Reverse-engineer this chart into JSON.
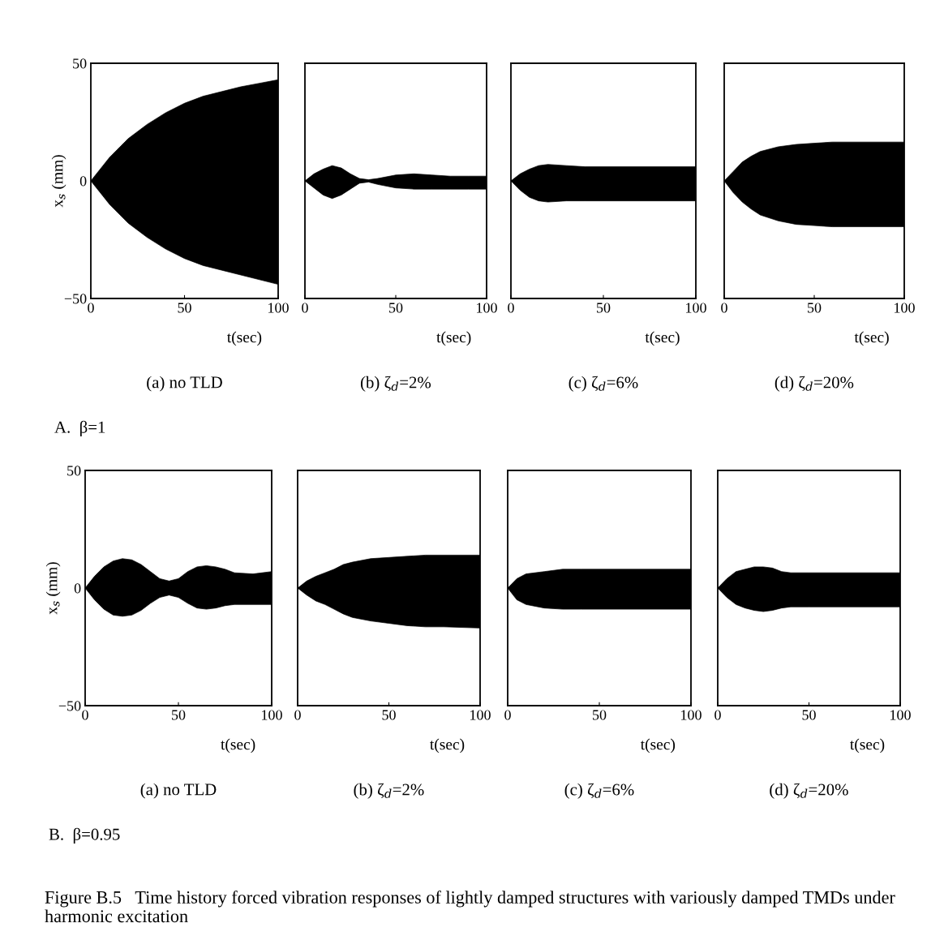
{
  "chart_data": [
    {
      "type": "area",
      "title": "(a) no TLD",
      "xlabel": "t(sec)",
      "ylabel": "x$_{s}$ (mm)",
      "xlim": [
        0,
        100
      ],
      "xticks": [
        0,
        50,
        100
      ],
      "ylim": [
        -50,
        50
      ],
      "yticks": [
        {
          "value": -50,
          "label": "−50"
        },
        0,
        50
      ],
      "annotations": [
        "A.  β=1"
      ],
      "x": [
        0,
        10,
        20,
        30,
        40,
        50,
        60,
        70,
        80,
        90,
        100
      ],
      "series": [
        {
          "color": "#000000",
          "values": [
            0,
            10,
            18,
            24,
            29,
            33,
            36,
            38,
            40,
            41.5,
            43
          ]
        },
        {
          "color": "#000000",
          "values": [
            0,
            -10,
            -18,
            -24,
            -29,
            -33,
            -36,
            -38,
            -40,
            -42,
            -44
          ]
        }
      ]
    },
    {
      "type": "area",
      "title": "(b) ζ$_{d}$=2%",
      "xlabel": "t(sec)",
      "xlim": [
        0,
        100
      ],
      "xticks": [
        0,
        50,
        100
      ],
      "ylim": [
        -50,
        50
      ],
      "tick_labels": "x",
      "x": [
        0,
        5,
        10,
        15,
        20,
        25,
        30,
        35,
        40,
        50,
        60,
        70,
        80,
        90,
        100
      ],
      "series": [
        {
          "color": "#000000",
          "values": [
            0,
            3,
            5,
            6.5,
            5.5,
            3,
            1,
            0.5,
            1,
            2.5,
            3,
            2.5,
            2,
            2,
            2
          ]
        },
        {
          "color": "#000000",
          "values": [
            0,
            -3,
            -6,
            -7.5,
            -6,
            -3.5,
            -1,
            -0.5,
            -1.5,
            -3,
            -3.5,
            -3.5,
            -3.5,
            -3.5,
            -3.5
          ]
        }
      ]
    },
    {
      "type": "area",
      "title": "(c) ζ$_{d}$=6%",
      "xlabel": "t(sec)",
      "xlim": [
        0,
        100
      ],
      "xticks": [
        0,
        50,
        100
      ],
      "ylim": [
        -50,
        50
      ],
      "tick_labels": "x",
      "x": [
        0,
        5,
        10,
        15,
        20,
        30,
        40,
        50,
        100
      ],
      "series": [
        {
          "color": "#000000",
          "values": [
            0,
            3,
            5,
            6.5,
            7,
            6.5,
            6,
            6,
            6
          ]
        },
        {
          "color": "#000000",
          "values": [
            0,
            -4,
            -7,
            -8.5,
            -9,
            -8.5,
            -8.5,
            -8.5,
            -8.5
          ]
        }
      ]
    },
    {
      "type": "area",
      "title": "(d) ζ$_{d}$=20%",
      "xlabel": "t(sec)",
      "xlim": [
        0,
        100
      ],
      "xticks": [
        0,
        50,
        100
      ],
      "ylim": [
        -50,
        50
      ],
      "tick_labels": "x",
      "x": [
        0,
        5,
        10,
        15,
        20,
        30,
        40,
        50,
        60,
        100
      ],
      "series": [
        {
          "color": "#000000",
          "values": [
            0,
            4,
            8,
            10.5,
            12.5,
            14.5,
            15.5,
            16,
            16.5,
            16.5
          ]
        },
        {
          "color": "#000000",
          "values": [
            0,
            -5,
            -9,
            -12,
            -14.5,
            -17,
            -18.5,
            -19,
            -19.5,
            -19.5
          ]
        }
      ]
    },
    {
      "type": "area",
      "title": "(a) no TLD",
      "xlabel": "t(sec)",
      "ylabel": "x$_{s}$ (mm)",
      "xlim": [
        0,
        100
      ],
      "xticks": [
        0,
        50,
        100
      ],
      "ylim": [
        -50,
        50
      ],
      "yticks": [
        {
          "value": -50,
          "label": "−50"
        },
        0,
        50
      ],
      "annotations": [
        "B.  β=0.95"
      ],
      "x": [
        0,
        5,
        10,
        15,
        20,
        25,
        30,
        35,
        40,
        45,
        50,
        55,
        60,
        65,
        70,
        75,
        80,
        90,
        100
      ],
      "series": [
        {
          "color": "#000000",
          "values": [
            0,
            5,
            9,
            11.5,
            12.5,
            12,
            10,
            7,
            4,
            3,
            4,
            7,
            9,
            9.5,
            9,
            8,
            6.5,
            6,
            7
          ]
        },
        {
          "color": "#000000",
          "values": [
            0,
            -5,
            -9,
            -11.5,
            -12,
            -11.5,
            -9.5,
            -6.5,
            -4,
            -3,
            -4,
            -6.5,
            -8.5,
            -9,
            -8.5,
            -7.5,
            -7,
            -7,
            -7
          ]
        }
      ]
    },
    {
      "type": "area",
      "title": "(b) ζ$_{d}$=2%",
      "xlabel": "t(sec)",
      "xlim": [
        0,
        100
      ],
      "xticks": [
        0,
        50,
        100
      ],
      "ylim": [
        -50,
        50
      ],
      "tick_labels": "x",
      "x": [
        0,
        5,
        10,
        15,
        20,
        25,
        30,
        40,
        50,
        60,
        70,
        80,
        100
      ],
      "series": [
        {
          "color": "#000000",
          "values": [
            0,
            3,
            5,
            6.5,
            8,
            10,
            11,
            12.5,
            13,
            13.5,
            14,
            14,
            14
          ]
        },
        {
          "color": "#000000",
          "values": [
            0,
            -3,
            -5.5,
            -7,
            -9,
            -11,
            -12.5,
            -14,
            -15,
            -16,
            -16.5,
            -16.5,
            -17
          ]
        }
      ]
    },
    {
      "type": "area",
      "title": "(c) ζ$_{d}$=6%",
      "xlabel": "t(sec)",
      "xlim": [
        0,
        100
      ],
      "xticks": [
        0,
        50,
        100
      ],
      "ylim": [
        -50,
        50
      ],
      "tick_labels": "x",
      "x": [
        0,
        5,
        10,
        20,
        30,
        40,
        100
      ],
      "series": [
        {
          "color": "#000000",
          "values": [
            0,
            4,
            6,
            7,
            8,
            8,
            8
          ]
        },
        {
          "color": "#000000",
          "values": [
            0,
            -5,
            -7,
            -8.5,
            -9,
            -9,
            -9
          ]
        }
      ]
    },
    {
      "type": "area",
      "title": "(d) ζ$_{d}$=20%",
      "xlabel": "t(sec)",
      "xlim": [
        0,
        100
      ],
      "xticks": [
        0,
        50,
        100
      ],
      "ylim": [
        -50,
        50
      ],
      "tick_labels": "x",
      "annotations": [
        "Figure B.5   Time history forced vibration responses of lightly damped structures with variously damped TMDs under harmonic excitation"
      ],
      "x": [
        0,
        5,
        10,
        15,
        20,
        25,
        30,
        35,
        40,
        50,
        100
      ],
      "series": [
        {
          "color": "#000000",
          "values": [
            0,
            4,
            7,
            8,
            9,
            9,
            8.5,
            7,
            6.5,
            6.5,
            6.5
          ]
        },
        {
          "color": "#000000",
          "values": [
            0,
            -4,
            -7,
            -8.5,
            -9.5,
            -10,
            -9.5,
            -8.5,
            -8,
            -8,
            -8
          ]
        }
      ]
    }
  ]
}
